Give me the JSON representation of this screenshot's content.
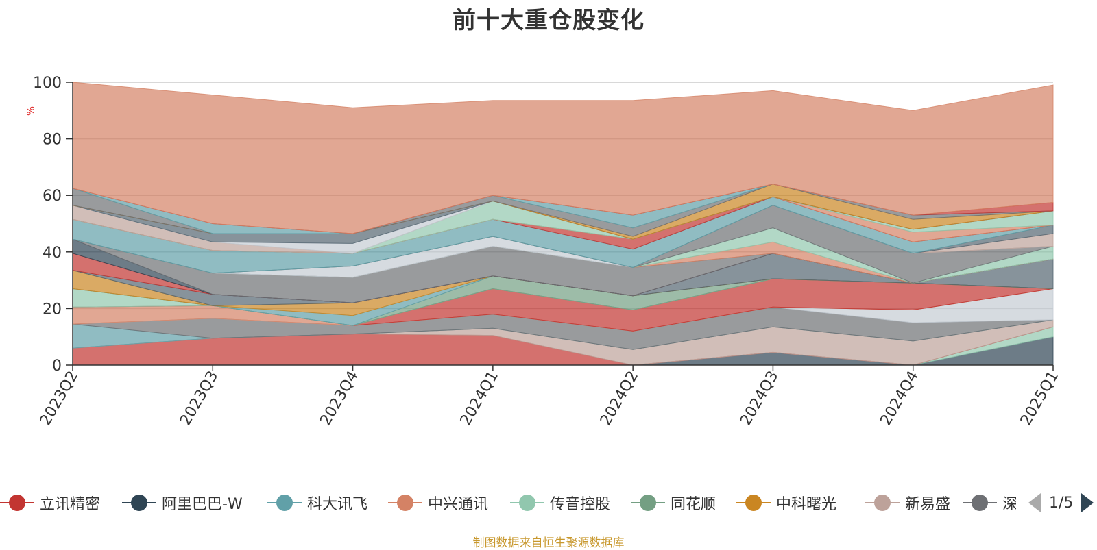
{
  "title": "前十大重仓股变化",
  "source_note": "制图数据来自恒生聚源数据库",
  "legend": {
    "page": "1/5",
    "items": [
      {
        "label": "立讯精密",
        "color": "#c23531"
      },
      {
        "label": "阿里巴巴-W",
        "color": "#2f4554"
      },
      {
        "label": "科大讯飞",
        "color": "#61a0a8"
      },
      {
        "label": "中兴通讯",
        "color": "#d48265"
      },
      {
        "label": "传音控股",
        "color": "#91c7ae"
      },
      {
        "label": "同花顺",
        "color": "#749f83"
      },
      {
        "label": "中科曙光",
        "color": "#ca8622"
      },
      {
        "label": "新易盛",
        "color": "#bda29a"
      },
      {
        "label": "深",
        "color": "#6e7074"
      }
    ]
  },
  "chart_data": {
    "type": "area",
    "stacked": true,
    "title": "前十大重仓股变化",
    "ylabel": "%",
    "ylim": [
      0,
      100
    ],
    "yticks": [
      0,
      20,
      40,
      60,
      80,
      100
    ],
    "grid": true,
    "categories": [
      "2023Q2",
      "2023Q3",
      "2023Q4",
      "2024Q1",
      "2024Q2",
      "2024Q3",
      "2024Q4",
      "2025Q1"
    ],
    "colors": [
      "#c23531",
      "#2f4554",
      "#61a0a8",
      "#d48265",
      "#91c7ae",
      "#749f83",
      "#ca8622",
      "#bda29a",
      "#6e7074",
      "#546570",
      "#c4ccd3"
    ],
    "series": [
      {
        "color": "#2f4554",
        "values": [
          0,
          0,
          0,
          0,
          0,
          4.5,
          0,
          10
        ]
      },
      {
        "color": "#91c7ae",
        "values": [
          0,
          0,
          0,
          0,
          0,
          0,
          0,
          3.5
        ]
      },
      {
        "color": "#c23531",
        "values": [
          6,
          9.5,
          11,
          10.5,
          0,
          0,
          0,
          0
        ]
      },
      {
        "color": "#bda29a",
        "values": [
          0,
          0,
          0,
          2.5,
          5.5,
          9,
          8.5,
          2.5
        ]
      },
      {
        "color": "#61a0a8",
        "values": [
          8.5,
          0,
          0,
          0,
          0,
          0,
          0,
          0
        ]
      },
      {
        "color": "#6e7074",
        "values": [
          0,
          7,
          3,
          5,
          6.5,
          7,
          6.5,
          0
        ]
      },
      {
        "color": "#c4ccd3",
        "values": [
          0,
          0,
          0,
          0,
          0,
          0,
          4.5,
          11
        ]
      },
      {
        "color": "#d48265",
        "values": [
          6,
          4.5,
          0,
          0,
          0,
          0,
          0,
          0
        ]
      },
      {
        "color": "#c23531",
        "values": [
          0,
          0,
          0,
          9,
          7.5,
          10,
          9.5,
          0
        ]
      },
      {
        "color": "#91c7ae",
        "values": [
          6.5,
          0,
          0,
          0,
          0,
          0,
          0,
          0
        ]
      },
      {
        "color": "#749f83",
        "values": [
          0,
          0,
          0,
          4.5,
          5,
          0,
          0,
          0
        ]
      },
      {
        "color": "#61a0a8",
        "values": [
          0,
          0,
          3.5,
          0,
          0,
          0,
          0,
          0
        ]
      },
      {
        "color": "#ca8622",
        "values": [
          6.5,
          0,
          4.5,
          0,
          0,
          0,
          0,
          0
        ]
      },
      {
        "color": "#546570",
        "values": [
          0,
          4,
          0,
          0,
          0,
          9,
          0,
          10.5
        ]
      },
      {
        "color": "#c23531",
        "values": [
          6,
          0,
          0,
          0,
          0,
          0,
          0,
          0
        ]
      },
      {
        "color": "#2f4554",
        "values": [
          5,
          0,
          0,
          0,
          0,
          0,
          0,
          0
        ]
      },
      {
        "color": "#6e7074",
        "values": [
          0,
          7.5,
          9,
          10.5,
          10,
          0,
          0,
          0
        ]
      },
      {
        "color": "#d48265",
        "values": [
          0,
          0,
          0,
          0,
          0,
          4,
          0,
          0
        ]
      },
      {
        "color": "#91c7ae",
        "values": [
          0,
          0,
          0,
          0,
          0,
          5,
          0,
          4.5
        ]
      },
      {
        "color": "#6e7074",
        "values": [
          0,
          0,
          0,
          0,
          0,
          8,
          10.5,
          0
        ]
      },
      {
        "color": "#c4ccd3",
        "values": [
          0,
          0,
          4,
          3.5,
          0,
          0,
          0,
          0
        ]
      },
      {
        "color": "#bda29a",
        "values": [
          0,
          0,
          0,
          0,
          0,
          0,
          0,
          4.5
        ]
      },
      {
        "color": "#546570",
        "values": [
          0,
          0,
          0,
          0,
          0,
          0,
          0,
          3
        ]
      },
      {
        "color": "#61a0a8",
        "values": [
          7,
          8,
          4.5,
          6,
          6.5,
          3,
          4,
          0
        ]
      },
      {
        "color": "#c23531",
        "values": [
          0,
          0,
          0,
          0,
          3.5,
          0,
          0,
          0
        ]
      },
      {
        "color": "#d48265",
        "values": [
          0,
          0,
          0,
          0,
          0,
          0,
          3.5,
          0
        ]
      },
      {
        "color": "#91c7ae",
        "values": [
          0,
          0,
          0,
          6.5,
          0,
          0,
          1,
          5
        ]
      },
      {
        "color": "#bda29a",
        "values": [
          5,
          3,
          0,
          0,
          0,
          0,
          0,
          0
        ]
      },
      {
        "color": "#c4ccd3",
        "values": [
          0,
          0,
          3.5,
          0,
          0,
          0,
          0,
          0
        ]
      },
      {
        "color": "#546570",
        "values": [
          0,
          3,
          3.5,
          0,
          0,
          0,
          0,
          0
        ]
      },
      {
        "color": "#ca8622",
        "values": [
          0,
          0,
          0,
          0,
          1,
          4.5,
          3.5,
          0
        ]
      },
      {
        "color": "#6e7074",
        "values": [
          6,
          0,
          0,
          2,
          3,
          0,
          1.5,
          0
        ]
      },
      {
        "color": "#61a0a8",
        "values": [
          0,
          3.5,
          0,
          0,
          4.5,
          0,
          0,
          0
        ]
      },
      {
        "color": "#c23531",
        "values": [
          0,
          0,
          0,
          0,
          0,
          0,
          0,
          3
        ]
      },
      {
        "color": "#d48265",
        "values": [
          37.5,
          45.5,
          44.5,
          33.5,
          40.5,
          33,
          37,
          41.5
        ]
      }
    ]
  }
}
